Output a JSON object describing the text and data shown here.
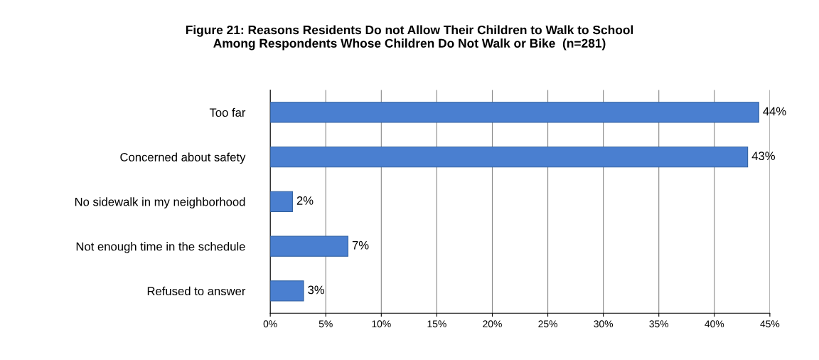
{
  "chart_data": {
    "type": "bar",
    "orientation": "horizontal",
    "title": "Figure 21: Reasons Residents Do not Allow Their Children to Walk to School\nAmong Respondents Whose Children Do Not Walk or Bike  (n=281)",
    "categories": [
      "Too far",
      "Concerned about safety",
      "No sidewalk in my neighborhood",
      "Not enough time in the schedule",
      "Refused to answer"
    ],
    "values": [
      44,
      43,
      2,
      7,
      3
    ],
    "value_labels": [
      "44%",
      "43%",
      "2%",
      "7%",
      "3%"
    ],
    "color": "#4a7fd0",
    "xlim": [
      0,
      45
    ],
    "xticks": [
      {
        "value": 0,
        "label": "0%"
      },
      {
        "value": 5,
        "label": "5%"
      },
      {
        "value": 10,
        "label": "10%"
      },
      {
        "value": 15,
        "label": "15%"
      },
      {
        "value": 20,
        "label": "20%"
      },
      {
        "value": 25,
        "label": "25%"
      },
      {
        "value": 30,
        "label": "30%"
      },
      {
        "value": 35,
        "label": "35%"
      },
      {
        "value": 40,
        "label": "40%"
      },
      {
        "value": 45,
        "label": "45%"
      }
    ],
    "grid": "x",
    "legend": false
  }
}
